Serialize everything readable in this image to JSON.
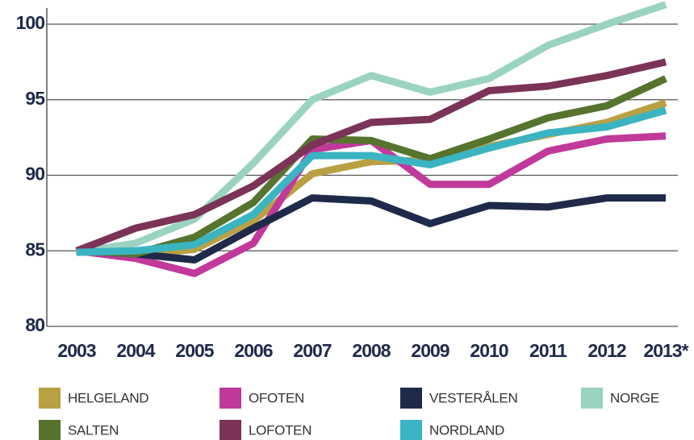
{
  "chart_data": {
    "type": "line",
    "categories": [
      "2003",
      "2004",
      "2005",
      "2006",
      "2007",
      "2008",
      "2009",
      "2010",
      "2011",
      "2012",
      "2013*"
    ],
    "ylim": [
      80,
      101.5
    ],
    "yticks": [
      80,
      85,
      90,
      95,
      100
    ],
    "grid": true,
    "legend": "bottom",
    "series": [
      {
        "name": "HELGELAND",
        "color": "#b9a043",
        "values": [
          85,
          84.7,
          85.1,
          87,
          90.1,
          90.9,
          91.0,
          91.9,
          92.7,
          93.5,
          94.8
        ]
      },
      {
        "name": "OFOTEN",
        "color": "#c1399a",
        "values": [
          85,
          84.5,
          83.5,
          85.5,
          91.7,
          92.3,
          89.4,
          89.4,
          91.6,
          92.4,
          92.6
        ]
      },
      {
        "name": "VESTERÅLEN",
        "color": "#1f2a4a",
        "values": [
          85,
          84.8,
          84.4,
          86.5,
          88.5,
          88.3,
          86.8,
          88.0,
          87.9,
          88.5,
          88.5
        ]
      },
      {
        "name": "NORGE",
        "color": "#9ad3c0",
        "values": [
          84.9,
          85.5,
          87.1,
          90.8,
          95.0,
          96.6,
          95.5,
          96.4,
          98.6,
          100.0,
          101.3
        ]
      },
      {
        "name": "SALTEN",
        "color": "#56742e",
        "values": [
          85,
          84.8,
          85.9,
          88.2,
          92.4,
          92.3,
          91.1,
          92.4,
          93.8,
          94.6,
          96.4
        ]
      },
      {
        "name": "LOFOTEN",
        "color": "#7b3358",
        "values": [
          85,
          86.5,
          87.4,
          89.3,
          92.0,
          93.5,
          93.7,
          95.6,
          95.9,
          96.6,
          97.5
        ]
      },
      {
        "name": "NORDLAND",
        "color": "#3bb4c1",
        "values": [
          84.9,
          85.0,
          85.4,
          87.4,
          91.3,
          91.3,
          90.7,
          91.8,
          92.8,
          93.2,
          94.3
        ]
      }
    ]
  }
}
